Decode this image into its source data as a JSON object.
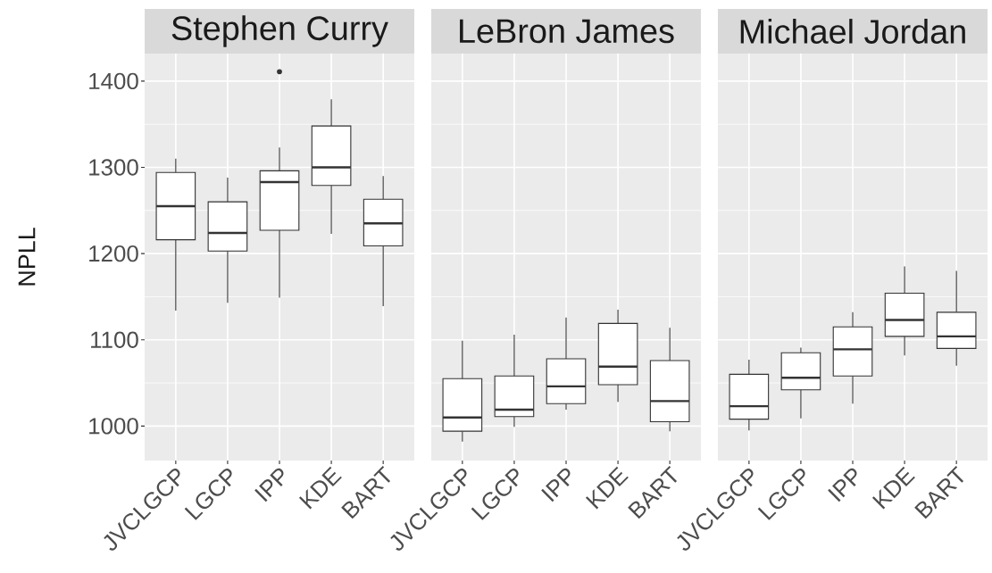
{
  "chart_data": [
    {
      "type": "box",
      "title": "Stephen Curry",
      "ylabel": "NPLL",
      "categories": [
        "JVCLGCP",
        "LGCP",
        "IPP",
        "KDE",
        "BART"
      ],
      "boxes": [
        {
          "low": 1134,
          "q1": 1216,
          "median": 1255,
          "q3": 1294,
          "high": 1310
        },
        {
          "low": 1143,
          "q1": 1203,
          "median": 1224,
          "q3": 1260,
          "high": 1288
        },
        {
          "low": 1149,
          "q1": 1227,
          "median": 1283,
          "q3": 1296,
          "high": 1323,
          "outliers": [
            1411
          ]
        },
        {
          "low": 1223,
          "q1": 1279,
          "median": 1300,
          "q3": 1348,
          "high": 1379
        },
        {
          "low": 1139,
          "q1": 1209,
          "median": 1235,
          "q3": 1263,
          "high": 1290
        }
      ],
      "ylim": [
        960,
        1432
      ],
      "yticks": [
        1000,
        1100,
        1200,
        1300,
        1400
      ],
      "grid": true
    },
    {
      "type": "box",
      "title": "LeBron James",
      "categories": [
        "JVCLGCP",
        "LGCP",
        "IPP",
        "KDE",
        "BART"
      ],
      "boxes": [
        {
          "low": 982,
          "q1": 994,
          "median": 1010,
          "q3": 1055,
          "high": 1099
        },
        {
          "low": 999,
          "q1": 1011,
          "median": 1019,
          "q3": 1058,
          "high": 1106
        },
        {
          "low": 1019,
          "q1": 1026,
          "median": 1046,
          "q3": 1078,
          "high": 1126
        },
        {
          "low": 1028,
          "q1": 1048,
          "median": 1069,
          "q3": 1119,
          "high": 1135
        },
        {
          "low": 994,
          "q1": 1005,
          "median": 1029,
          "q3": 1076,
          "high": 1114
        }
      ],
      "ylim": [
        960,
        1432
      ],
      "yticks": [
        1000,
        1100,
        1200,
        1300,
        1400
      ],
      "grid": true,
      "tick_labels": "x"
    },
    {
      "type": "box",
      "title": "Michael Jordan",
      "categories": [
        "JVCLGCP",
        "LGCP",
        "IPP",
        "KDE",
        "BART"
      ],
      "boxes": [
        {
          "low": 995,
          "q1": 1008,
          "median": 1023,
          "q3": 1060,
          "high": 1077
        },
        {
          "low": 1009,
          "q1": 1042,
          "median": 1056,
          "q3": 1085,
          "high": 1091
        },
        {
          "low": 1026,
          "q1": 1058,
          "median": 1089,
          "q3": 1115,
          "high": 1132
        },
        {
          "low": 1082,
          "q1": 1104,
          "median": 1123,
          "q3": 1154,
          "high": 1185
        },
        {
          "low": 1070,
          "q1": 1090,
          "median": 1104,
          "q3": 1132,
          "high": 1180
        }
      ],
      "ylim": [
        960,
        1432
      ],
      "yticks": [
        1000,
        1100,
        1200,
        1300,
        1400
      ],
      "grid": true,
      "tick_labels": "x"
    }
  ]
}
